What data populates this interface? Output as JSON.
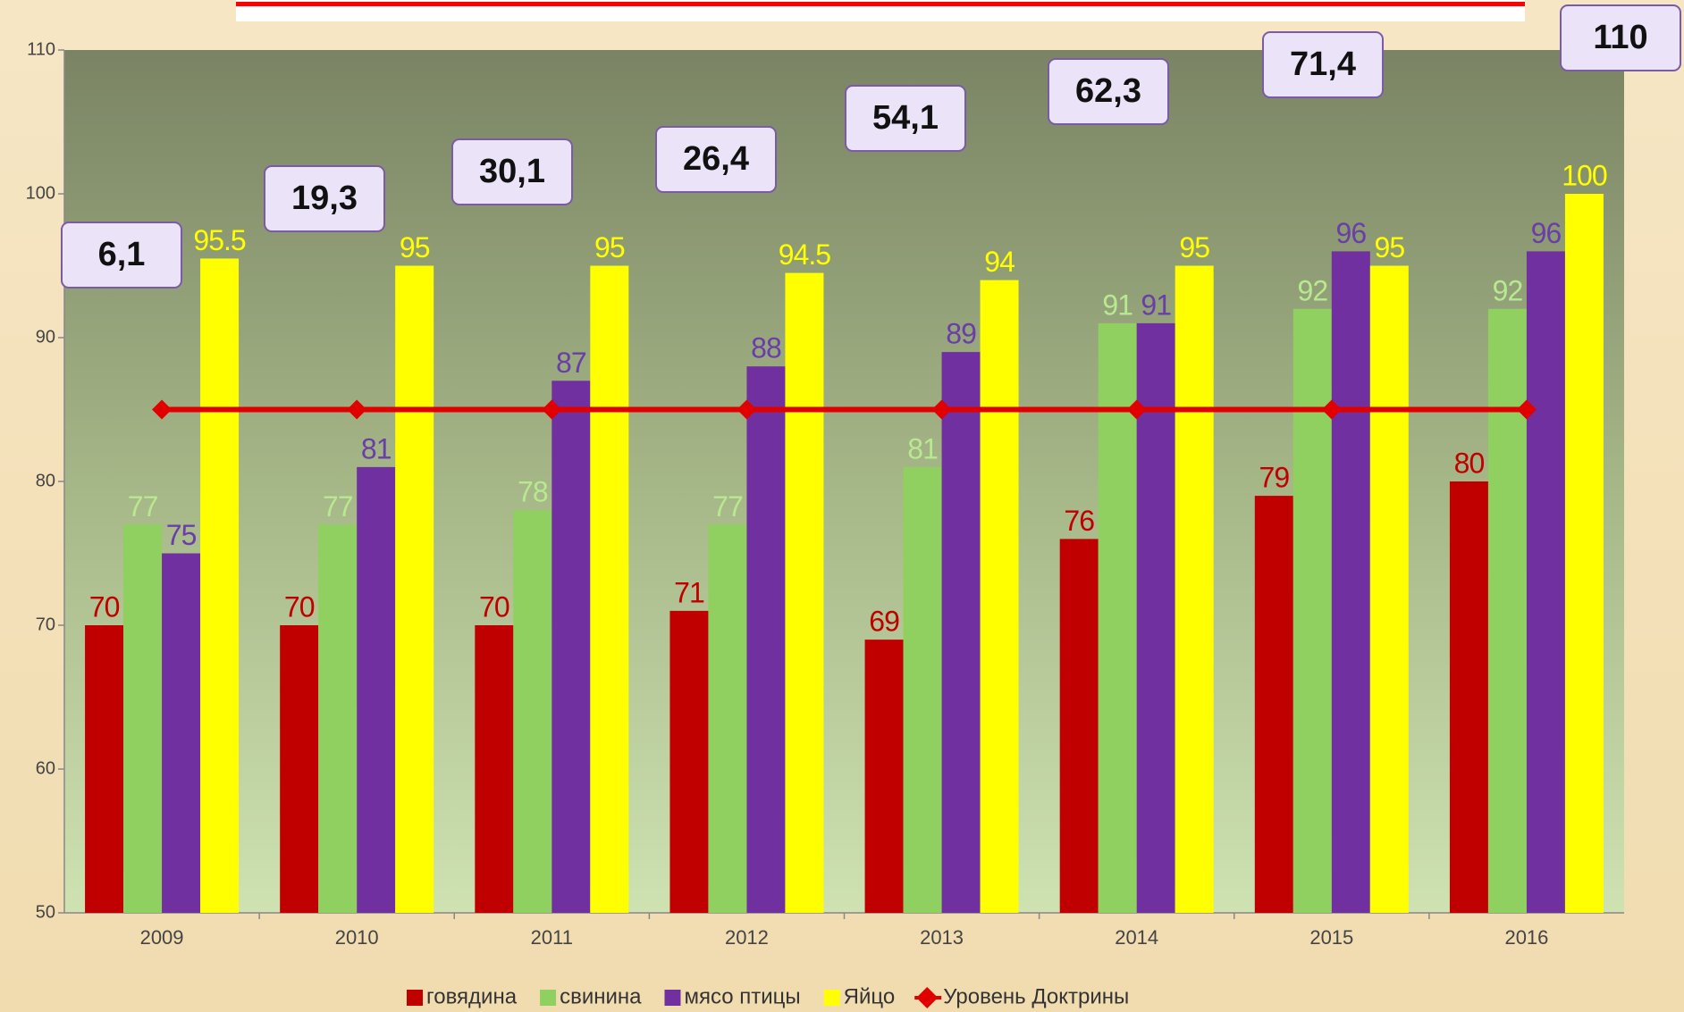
{
  "chart_data": {
    "type": "bar",
    "categories": [
      "2009",
      "2010",
      "2011",
      "2012",
      "2013",
      "2014",
      "2015",
      "2016"
    ],
    "series": [
      {
        "name": "говядина",
        "color": "#c00000",
        "label_color": "#c00000",
        "values": [
          70,
          70,
          70,
          71,
          69,
          76,
          79,
          80
        ]
      },
      {
        "name": "свинина",
        "color": "#8fd060",
        "label_color": "#b8e890",
        "values": [
          77,
          77,
          78,
          77,
          81,
          91,
          92,
          92
        ]
      },
      {
        "name": "мясо птицы",
        "color": "#7030a0",
        "label_color": "#6a3ea8",
        "values": [
          75,
          81,
          87,
          88,
          89,
          91,
          96,
          96
        ]
      },
      {
        "name": "Яйцо",
        "color": "#ffff00",
        "label_color": "#ffff00",
        "values": [
          95.5,
          95,
          95,
          94.5,
          94,
          95,
          95,
          100
        ]
      },
      {
        "name": "Уровень Доктрины",
        "type": "line",
        "color": "#e00000",
        "values": [
          85,
          85,
          85,
          85,
          85,
          85,
          85,
          85
        ]
      }
    ],
    "ylim": [
      50,
      110
    ],
    "yticks": [
      50,
      60,
      70,
      80,
      90,
      100,
      110
    ],
    "annotations": [
      "6,1",
      "19,3",
      "30,1",
      "26,4",
      "54,1",
      "62,3",
      "71,4",
      "110"
    ],
    "legend": "bottom"
  }
}
